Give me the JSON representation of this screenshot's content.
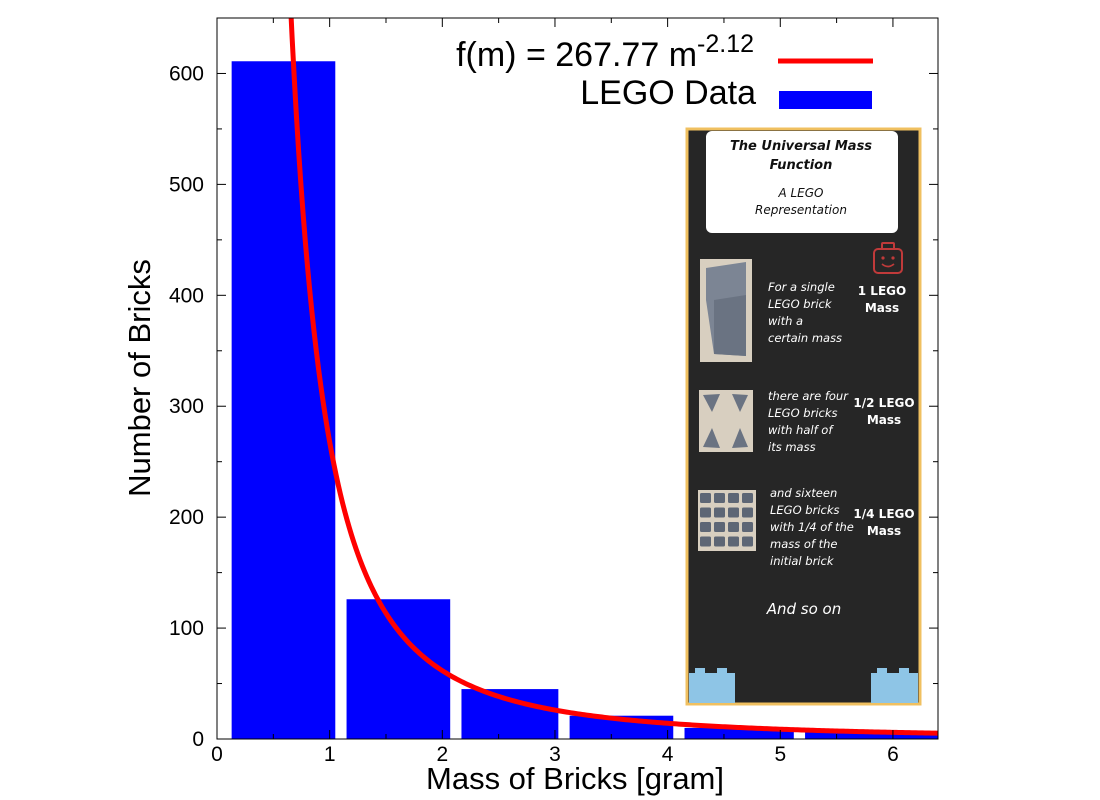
{
  "chart_data": {
    "type": "bar",
    "title": "",
    "xlabel": "Mass of Bricks [gram]",
    "ylabel": "Number of Bricks",
    "xlim": [
      0,
      6.4
    ],
    "ylim": [
      0,
      650
    ],
    "x_ticks": [
      0,
      1,
      2,
      3,
      4,
      5,
      6
    ],
    "y_ticks": [
      0,
      100,
      200,
      300,
      400,
      500,
      600
    ],
    "bars": [
      {
        "x_start": 0.13,
        "x_end": 1.05,
        "value": 611
      },
      {
        "x_start": 1.15,
        "x_end": 2.07,
        "value": 126
      },
      {
        "x_start": 2.17,
        "x_end": 3.03,
        "value": 45
      },
      {
        "x_start": 3.13,
        "x_end": 4.05,
        "value": 21
      },
      {
        "x_start": 4.15,
        "x_end": 5.12,
        "value": 10
      },
      {
        "x_start": 5.22,
        "x_end": 6.4,
        "value": 6
      }
    ],
    "fit": {
      "coefficient": 267.77,
      "exponent": -2.12,
      "x_from": 0.55,
      "x_to": 6.4
    },
    "bar_color": "#0000ff",
    "fit_color": "#ff0000",
    "legend": {
      "position": "top-right",
      "fit_label": "f(m) = 267.77 m",
      "fit_exponent_label": "-2.12",
      "data_label": "LEGO Data"
    }
  },
  "inset": {
    "title_line1": "The Universal Mass",
    "title_line2": "Function",
    "subtitle_line1": "A LEGO",
    "subtitle_line2": "Representation",
    "row1_text": [
      "For a single",
      "LEGO brick",
      "with a",
      "certain mass"
    ],
    "row1_mass": [
      "1 LEGO",
      "Mass"
    ],
    "row2_text": [
      "there are four",
      "LEGO bricks",
      "with half  of",
      "its mass"
    ],
    "row2_mass": [
      "1/2 LEGO",
      "Mass"
    ],
    "row3_text": [
      "and sixteen",
      "LEGO bricks",
      "with 1/4 of the",
      "mass of the",
      "initial brick"
    ],
    "row3_mass": [
      "1/4 LEGO",
      "Mass"
    ],
    "ending": "And so on",
    "colors": {
      "background": "#262626",
      "border": "#f0c060",
      "brick_blue": "#8ec5e6",
      "face_red": "#c03a3a"
    }
  }
}
